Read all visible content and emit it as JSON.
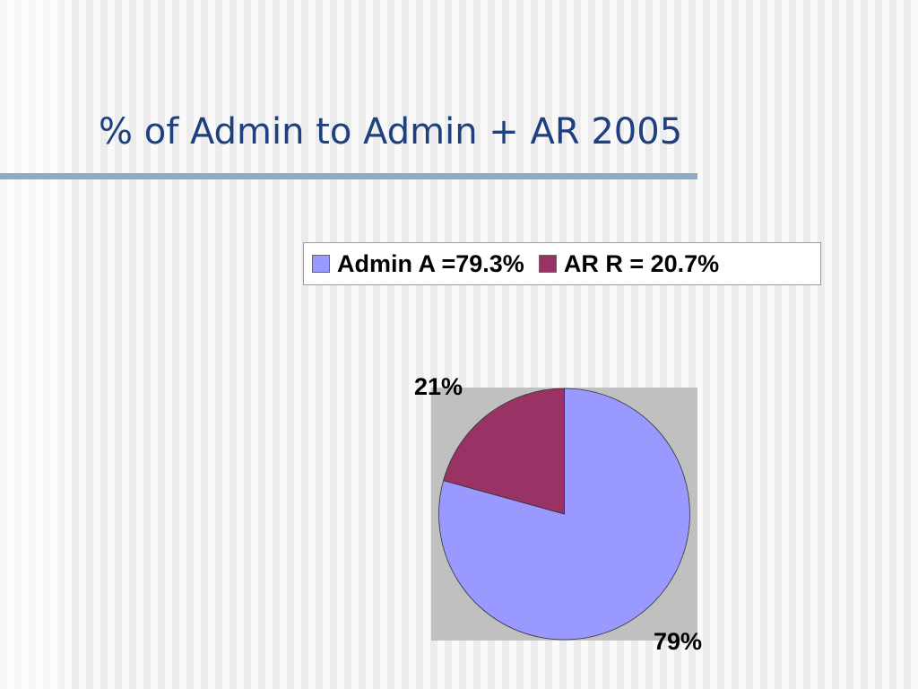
{
  "slide": {
    "title": "% of Admin to Admin + AR 2005"
  },
  "chart_data": {
    "type": "pie",
    "title": "",
    "categories": [
      "Admin A =79.3%",
      "AR R = 20.7%"
    ],
    "values": [
      79.3,
      20.7
    ],
    "colors": [
      "#9999ff",
      "#993366"
    ],
    "data_labels": [
      "79%",
      "21%"
    ],
    "legend": {
      "placement": "top",
      "entries": [
        "Admin A =79.3%",
        "AR R = 20.7%"
      ]
    },
    "plot_background": "#c0c0c0"
  }
}
